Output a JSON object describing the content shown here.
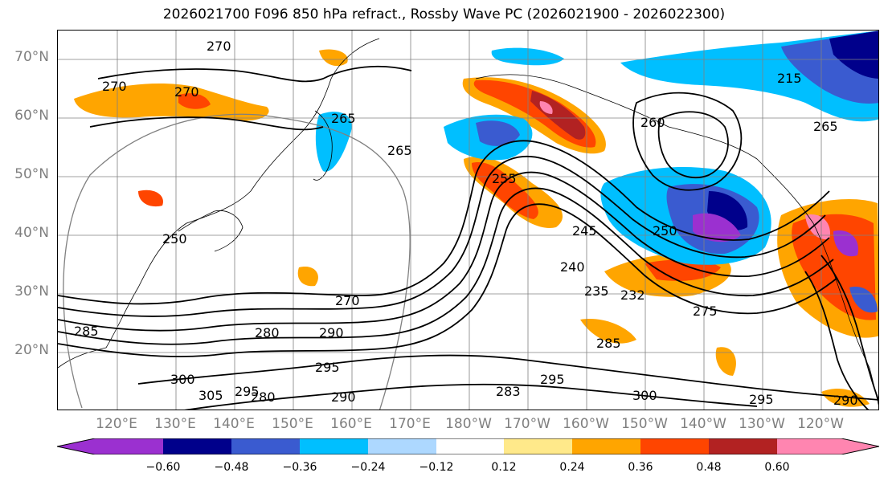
{
  "title": "2026021700 F096 850 hPa refract., Rossby Wave PC (2026021900 - 2026022300)",
  "lat_labels": [
    "70°N",
    "60°N",
    "50°N",
    "40°N",
    "30°N",
    "20°N"
  ],
  "lon_labels": [
    "120°E",
    "130°E",
    "140°E",
    "150°E",
    "160°E",
    "170°E",
    "180°W",
    "170°W",
    "160°W",
    "150°W",
    "140°W",
    "130°W",
    "120°W"
  ],
  "colorbar": {
    "ticks": [
      "−0.60",
      "−0.48",
      "−0.36",
      "−0.24",
      "−0.12",
      "0.12",
      "0.24",
      "0.36",
      "0.48",
      "0.60"
    ],
    "colors": [
      "#9b30d0",
      "#00008b",
      "#3a5bd0",
      "#00bfff",
      "#add8ff",
      "#ffffff",
      "#ffe98a",
      "#ffa500",
      "#ff4500",
      "#b22222",
      "#ff85b0"
    ]
  },
  "contour_labels": [
    "270",
    "270",
    "270",
    "265",
    "265",
    "260",
    "255",
    "250",
    "245",
    "240",
    "235",
    "232",
    "275",
    "270",
    "280",
    "290",
    "295",
    "300",
    "305",
    "295",
    "285",
    "283",
    "290",
    "295",
    "300",
    "295",
    "290",
    "280",
    "285",
    "250",
    "265",
    "215"
  ],
  "shading_colors": {
    "purple": "#9b30d0",
    "navy": "#00008b",
    "blue": "#3a5bd0",
    "cyan": "#00bfff",
    "lightblue": "#add8ff",
    "yellow": "#ffe98a",
    "orange": "#ffa500",
    "redorange": "#ff4500",
    "darkred": "#b22222",
    "pink": "#ff85b0"
  }
}
